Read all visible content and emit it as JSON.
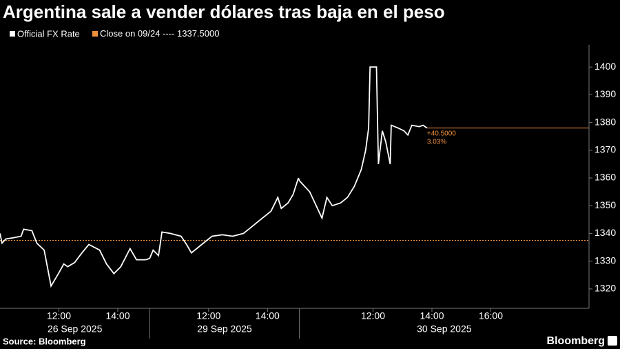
{
  "chart_data": {
    "type": "line",
    "title": "Argentina sale a vender dólares tras baja en el peso",
    "source": "Source: Bloomberg",
    "brand": "Bloomberg",
    "series_name": "Official FX Rate",
    "color": "#ffffff",
    "reference": {
      "label": "Close on 09/24 ----",
      "value": 1337.5,
      "value_label": "1337.5000",
      "color": "#f0913c"
    },
    "annotation": {
      "change": 40.5,
      "change_label": "+40.5000",
      "percent": 3.03,
      "percent_label": "3.03%"
    },
    "ylim": [
      1313,
      1408
    ],
    "yticks": [
      1320,
      1330,
      1340,
      1350,
      1360,
      1370,
      1380,
      1390,
      1400
    ],
    "days": [
      {
        "date": "26 Sep 2025",
        "xlim": [
          "10:00",
          "15:05"
        ],
        "xticks": [
          "12:00",
          "14:00"
        ],
        "x": [
          "10:00",
          "10:04",
          "10:12",
          "10:29",
          "10:43",
          "10:48",
          "11:05",
          "11:15",
          "11:30",
          "11:44",
          "11:59",
          "12:10",
          "12:18",
          "12:32",
          "12:47",
          "13:01",
          "13:23",
          "13:37",
          "13:52",
          "14:06",
          "14:25",
          "14:38",
          "14:57"
        ],
        "values": [
          1340,
          1336.5,
          1338,
          1338.5,
          1339,
          1341.5,
          1341,
          1336.5,
          1334,
          1321,
          1325.5,
          1329,
          1328,
          1329.5,
          1333,
          1336,
          1334,
          1329,
          1325.5,
          1328,
          1334.5,
          1330.5,
          1330.5
        ]
      },
      {
        "date": "29 Sep 2025",
        "xlim": [
          "10:00",
          "15:05"
        ],
        "xticks": [
          "12:00",
          "14:00"
        ],
        "x": [
          "10:00",
          "10:07",
          "10:18",
          "10:25",
          "10:42",
          "11:04",
          "11:15",
          "11:25",
          "11:39",
          "11:53",
          "12:07",
          "12:28",
          "12:49",
          "13:11",
          "13:25",
          "13:46",
          "14:07",
          "14:21",
          "14:28",
          "14:42",
          "14:52",
          "15:03"
        ],
        "values": [
          1331,
          1334,
          1332,
          1340.5,
          1340,
          1339,
          1336,
          1333,
          1335,
          1337,
          1339,
          1339.5,
          1339,
          1340,
          1342,
          1345,
          1348,
          1353,
          1349,
          1351,
          1354,
          1360
        ]
      },
      {
        "date": "30 Sep 2025",
        "xlim": [
          "09:30",
          "19:20"
        ],
        "xticks": [
          "12:00",
          "14:00",
          "16:00"
        ],
        "x": [
          "09:30",
          "09:51",
          "10:16",
          "10:26",
          "10:37",
          "10:54",
          "11:08",
          "11:22",
          "11:36",
          "11:45",
          "11:51",
          "11:54",
          "12:07",
          "12:11",
          "12:19",
          "12:26",
          "12:35",
          "12:37",
          "12:51",
          "13:03",
          "13:11",
          "13:19",
          "13:34",
          "13:42",
          "13:50"
        ],
        "values": [
          1359,
          1355,
          1345.5,
          1353,
          1350,
          1351,
          1353,
          1357,
          1363,
          1370,
          1378,
          1400,
          1400,
          1365,
          1377,
          1373,
          1365,
          1379,
          1378,
          1377,
          1375.5,
          1379,
          1378.5,
          1379,
          1378
        ]
      }
    ]
  }
}
